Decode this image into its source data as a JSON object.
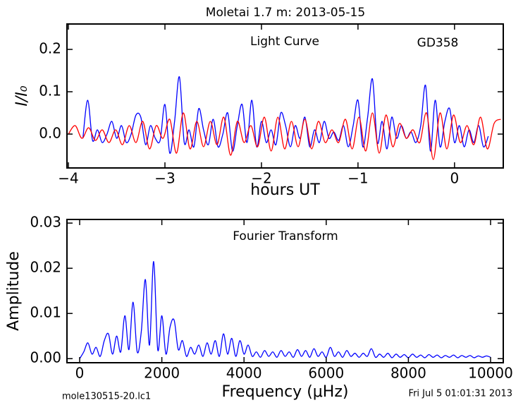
{
  "chart_data": [
    {
      "type": "line",
      "title": "Moletai 1.7 m:  2013-05-15",
      "xlabel": "hours UT",
      "ylabel": "I/I₀",
      "annotations": [
        "Light Curve",
        "GD358"
      ],
      "xlim": [
        -4.015,
        0.505
      ],
      "ylim": [
        -0.08,
        0.26
      ],
      "xticks": [
        {
          "value": -4,
          "label": "−4"
        },
        {
          "value": -3,
          "label": "−3"
        },
        {
          "value": -2,
          "label": "−2"
        },
        {
          "value": -1,
          "label": "−1"
        },
        {
          "value": 0,
          "label": "0"
        }
      ],
      "yticks": [
        {
          "value": 0,
          "label": "0.0"
        },
        0.1,
        0.2
      ],
      "series": [
        {
          "color": "#0000ff",
          "x": [
            -3.85,
            -3.8,
            -3.75,
            -3.7,
            -3.65,
            -3.6,
            -3.55,
            -3.5,
            -3.45,
            -3.4,
            -3.35,
            -3.3,
            -3.25,
            -3.2,
            -3.15,
            -3.1,
            -3.05,
            -3.0,
            -2.95,
            -2.9,
            -2.85,
            -2.8,
            -2.75,
            -2.7,
            -2.65,
            -2.6,
            -2.55,
            -2.5,
            -2.45,
            -2.4,
            -2.35,
            -2.3,
            -2.25,
            -2.2,
            -2.15,
            -2.1,
            -2.05,
            -2.0,
            -1.95,
            -1.9,
            -1.85,
            -1.8,
            -1.75,
            -1.7,
            -1.65,
            -1.6,
            -1.55,
            -1.5,
            -1.45,
            -1.4,
            -1.35,
            -1.3,
            -1.25,
            -1.2,
            -1.15,
            -1.1,
            -1.05,
            -1.0,
            -0.95,
            -0.9,
            -0.85,
            -0.8,
            -0.75,
            -0.7,
            -0.65,
            -0.6,
            -0.55,
            -0.5,
            -0.45,
            -0.4,
            -0.35,
            -0.3,
            -0.25,
            -0.2,
            -0.15,
            -0.1,
            -0.05,
            0.0,
            0.05,
            0.1,
            0.15,
            0.2,
            0.25,
            0.3,
            0.35
          ],
          "values": [
            -0.01,
            0.08,
            -0.015,
            0.01,
            -0.02,
            0.0,
            0.03,
            -0.01,
            0.02,
            -0.02,
            0.0,
            0.045,
            0.04,
            -0.025,
            0.02,
            -0.01,
            -0.015,
            0.07,
            -0.045,
            0.03,
            0.135,
            -0.02,
            0.01,
            -0.03,
            0.06,
            0.01,
            -0.025,
            0.035,
            -0.03,
            0.0,
            0.05,
            -0.04,
            0.02,
            0.07,
            -0.02,
            0.08,
            -0.03,
            0.03,
            -0.02,
            0.01,
            -0.025,
            0.05,
            0.02,
            -0.03,
            0.02,
            -0.01,
            0.04,
            -0.03,
            0.01,
            -0.02,
            0.03,
            -0.01,
            0.005,
            -0.015,
            0.02,
            -0.03,
            0.02,
            0.08,
            -0.03,
            0.04,
            0.13,
            -0.02,
            0.03,
            -0.035,
            0.04,
            -0.01,
            0.02,
            -0.01,
            0.005,
            -0.02,
            0.02,
            0.115,
            -0.04,
            0.08,
            -0.03,
            0.03,
            0.06,
            -0.02,
            0.02,
            -0.03,
            0.01,
            -0.02,
            0.02,
            -0.03,
            -0.005
          ]
        },
        {
          "color": "#ff0000",
          "x": [
            -4.0,
            -3.93,
            -3.86,
            -3.79,
            -3.72,
            -3.65,
            -3.58,
            -3.51,
            -3.44,
            -3.37,
            -3.3,
            -3.23,
            -3.16,
            -3.09,
            -3.02,
            -2.95,
            -2.88,
            -2.81,
            -2.74,
            -2.67,
            -2.6,
            -2.53,
            -2.46,
            -2.39,
            -2.32,
            -2.25,
            -2.18,
            -2.11,
            -2.04,
            -1.97,
            -1.9,
            -1.83,
            -1.76,
            -1.69,
            -1.62,
            -1.55,
            -1.48,
            -1.41,
            -1.34,
            -1.27,
            -1.2,
            -1.13,
            -1.06,
            -0.99,
            -0.92,
            -0.85,
            -0.78,
            -0.71,
            -0.64,
            -0.57,
            -0.5,
            -0.43,
            -0.36,
            -0.29,
            -0.22,
            -0.15,
            -0.08,
            -0.01,
            0.06,
            0.13,
            0.2,
            0.27,
            0.34,
            0.41,
            0.48
          ],
          "values": [
            0.0,
            0.02,
            -0.01,
            0.015,
            -0.015,
            0.01,
            -0.02,
            0.01,
            -0.025,
            0.02,
            -0.02,
            0.03,
            -0.035,
            0.02,
            -0.01,
            0.035,
            -0.045,
            0.05,
            -0.035,
            0.03,
            -0.03,
            0.03,
            -0.025,
            0.04,
            -0.05,
            0.03,
            -0.02,
            0.02,
            -0.03,
            0.04,
            -0.04,
            0.04,
            -0.035,
            0.03,
            -0.03,
            0.035,
            -0.035,
            0.03,
            -0.02,
            0.01,
            -0.02,
            0.035,
            -0.035,
            0.04,
            -0.04,
            0.05,
            -0.045,
            0.045,
            -0.03,
            0.025,
            -0.01,
            0.01,
            -0.02,
            0.05,
            -0.06,
            0.05,
            -0.035,
            0.045,
            -0.02,
            0.02,
            -0.025,
            0.04,
            -0.035,
            0.025,
            0.035
          ]
        }
      ]
    },
    {
      "type": "line",
      "xlabel": "Frequency (μHz)",
      "ylabel": "Amplitude",
      "annotations": [
        "Fourier Transform"
      ],
      "xlim": [
        -309,
        10309
      ],
      "ylim": [
        -0.0009,
        0.0308
      ],
      "xticks": [
        0,
        2000,
        4000,
        6000,
        8000,
        10000
      ],
      "yticks": [
        {
          "value": 0,
          "label": "0.00"
        },
        {
          "value": 0.01,
          "label": "0.01"
        },
        {
          "value": 0.02,
          "label": "0.02"
        },
        {
          "value": 0.03,
          "label": "0.03"
        }
      ],
      "series": [
        {
          "color": "#0000ff",
          "x": [
            0,
            100,
            200,
            300,
            400,
            500,
            600,
            700,
            800,
            900,
            1000,
            1100,
            1200,
            1300,
            1400,
            1500,
            1600,
            1700,
            1800,
            1900,
            2000,
            2100,
            2200,
            2300,
            2400,
            2500,
            2600,
            2700,
            2800,
            2900,
            3000,
            3100,
            3200,
            3300,
            3400,
            3500,
            3600,
            3700,
            3800,
            3900,
            4000,
            4100,
            4200,
            4300,
            4400,
            4500,
            4600,
            4700,
            4800,
            4900,
            5000,
            5100,
            5200,
            5300,
            5400,
            5500,
            5600,
            5700,
            5800,
            5900,
            6000,
            6100,
            6200,
            6300,
            6400,
            6500,
            6600,
            6700,
            6800,
            6900,
            7000,
            7100,
            7200,
            7300,
            7400,
            7500,
            7600,
            7700,
            7800,
            7900,
            8000,
            8100,
            8200,
            8300,
            8400,
            8500,
            8600,
            8700,
            8800,
            8900,
            9000,
            9100,
            9200,
            9300,
            9400,
            9500,
            9600,
            9700,
            9800,
            9900,
            10000
          ],
          "values": [
            0.0,
            0.0015,
            0.0035,
            0.001,
            0.0025,
            0.0005,
            0.004,
            0.0055,
            0.001,
            0.005,
            0.0015,
            0.0095,
            0.002,
            0.0125,
            0.0015,
            0.006,
            0.0175,
            0.003,
            0.0215,
            0.002,
            0.0095,
            0.001,
            0.007,
            0.0085,
            0.002,
            0.004,
            0.0005,
            0.0025,
            0.001,
            0.003,
            0.0005,
            0.0035,
            0.001,
            0.004,
            0.0005,
            0.0055,
            0.001,
            0.0045,
            0.0005,
            0.004,
            0.001,
            0.003,
            0.0005,
            0.0015,
            0.0003,
            0.0018,
            0.0005,
            0.0015,
            0.0003,
            0.0018,
            0.0005,
            0.0015,
            0.0003,
            0.002,
            0.0005,
            0.0018,
            0.0003,
            0.0022,
            0.0005,
            0.0015,
            0.0003,
            0.0025,
            0.0005,
            0.0015,
            0.0003,
            0.0018,
            0.0005,
            0.0012,
            0.0003,
            0.0012,
            0.0005,
            0.0022,
            0.0003,
            0.001,
            0.0003,
            0.0012,
            0.0002,
            0.001,
            0.0003,
            0.0009,
            0.0002,
            0.001,
            0.0003,
            0.0008,
            0.0002,
            0.0009,
            0.0003,
            0.0008,
            0.0002,
            0.0007,
            0.0003,
            0.0008,
            0.0002,
            0.0007,
            0.0003,
            0.0007,
            0.0002,
            0.0006,
            0.0003,
            0.0006,
            0.0003
          ]
        }
      ]
    }
  ],
  "footer": {
    "left": "mole130515-20.lc1",
    "right": "Fri Jul  5 01:01:31 2013"
  }
}
